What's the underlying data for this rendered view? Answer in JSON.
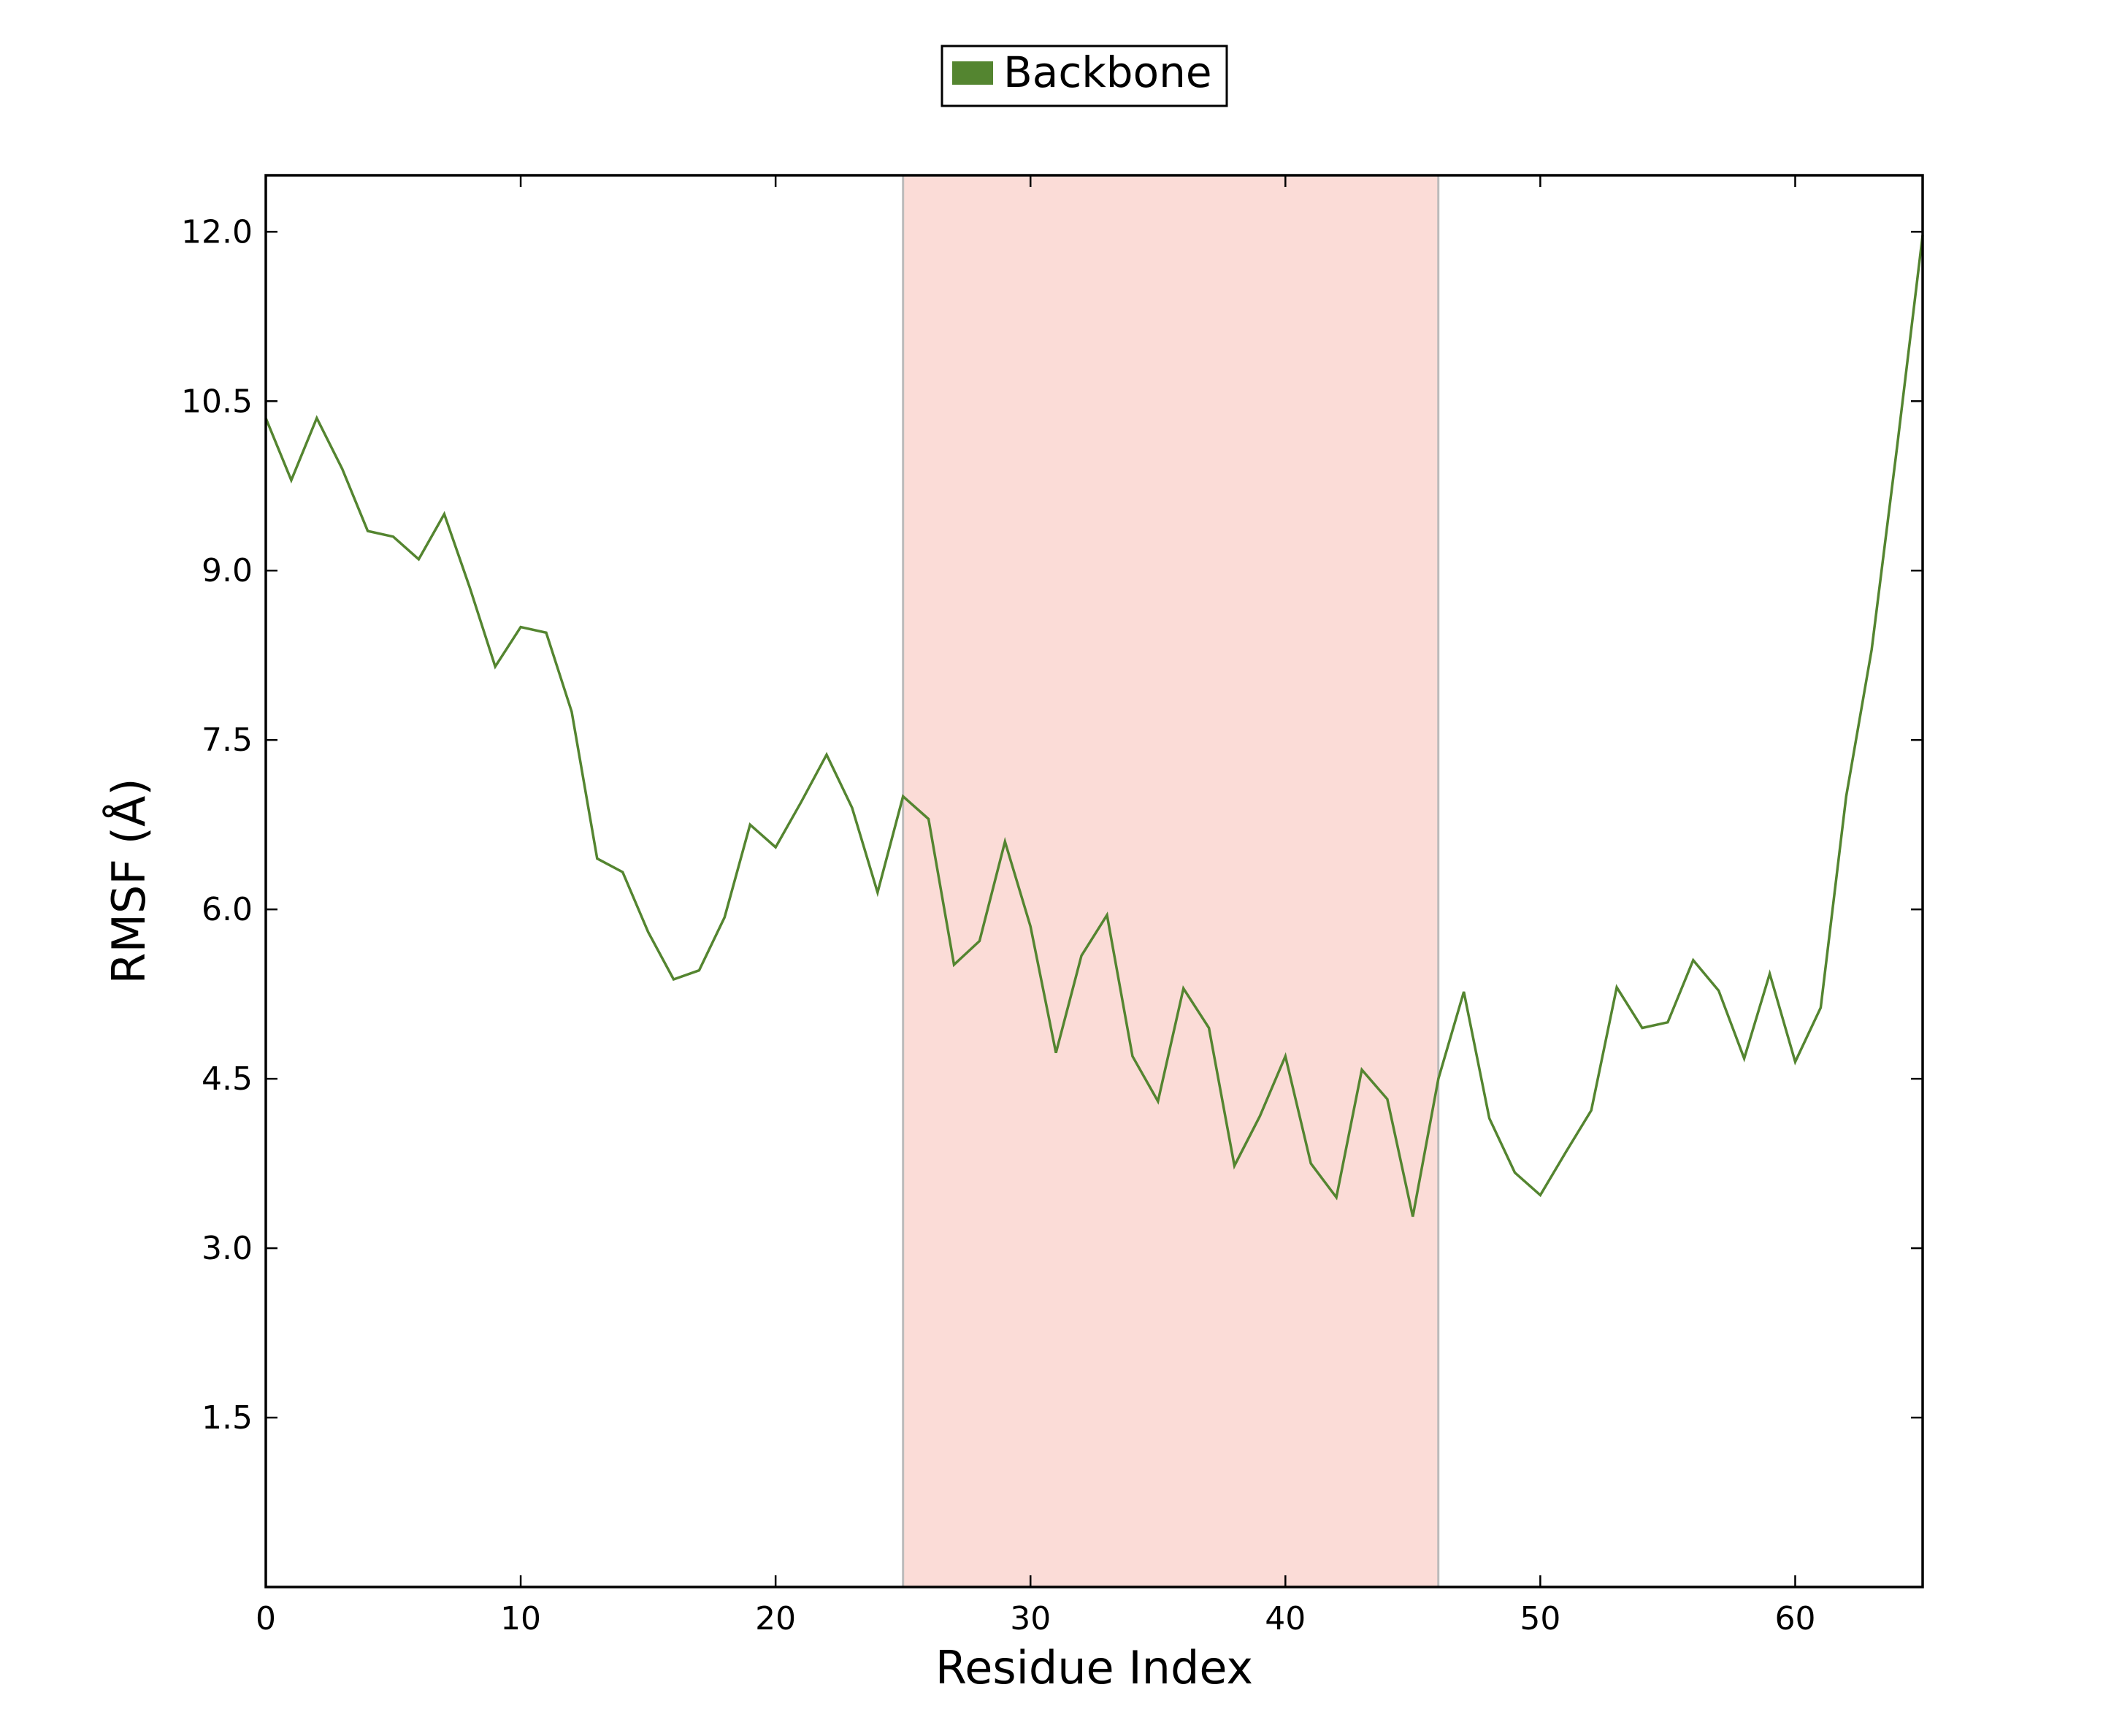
{
  "chart_data": {
    "type": "line",
    "title": "",
    "xlabel": "Residue Index",
    "ylabel": "RMSF (Å)",
    "xlim": [
      0,
      65
    ],
    "ylim": [
      0.0,
      12.5
    ],
    "xticks": [
      0,
      10,
      20,
      30,
      40,
      50,
      60
    ],
    "xtick_labels": [
      "0",
      "10",
      "20",
      "30",
      "40",
      "50",
      "60"
    ],
    "yticks": [
      1.5,
      3.0,
      4.5,
      6.0,
      7.5,
      9.0,
      10.5,
      12.0
    ],
    "ytick_labels": [
      "1.5",
      "3.0",
      "4.5",
      "6.0",
      "7.5",
      "9.0",
      "10.5",
      "12.0"
    ],
    "grid": false,
    "legend_position": "top-center, outside plot",
    "highlight_region": {
      "x_start": 25,
      "x_end": 46,
      "color": "#fbdcd7",
      "edge_color": "#bbbbbb"
    },
    "series": [
      {
        "name": "Backbone",
        "color": "#548530",
        "x": [
          0,
          1,
          2,
          3,
          4,
          5,
          6,
          7,
          8,
          9,
          10,
          11,
          12,
          13,
          14,
          15,
          16,
          17,
          18,
          19,
          20,
          21,
          22,
          23,
          24,
          25,
          26,
          27,
          28,
          29,
          30,
          31,
          32,
          33,
          34,
          35,
          36,
          37,
          38,
          39,
          40,
          41,
          42,
          43,
          44,
          45,
          46,
          47,
          48,
          49,
          50,
          51,
          52,
          53,
          54,
          55,
          56,
          57,
          58,
          59,
          60,
          61,
          62,
          63,
          64,
          65
        ],
        "values": [
          10.35,
          9.8,
          10.35,
          9.9,
          9.35,
          9.3,
          9.1,
          9.5,
          8.85,
          8.15,
          8.5,
          8.45,
          7.75,
          6.45,
          6.33,
          5.8,
          5.38,
          5.46,
          5.93,
          6.75,
          6.55,
          6.95,
          7.37,
          6.9,
          6.15,
          7.0,
          6.8,
          5.51,
          5.72,
          6.6,
          5.85,
          4.73,
          5.59,
          5.95,
          4.7,
          4.3,
          5.3,
          4.95,
          3.73,
          4.17,
          4.7,
          3.75,
          3.45,
          4.58,
          4.32,
          3.28,
          4.5,
          5.27,
          4.15,
          3.67,
          3.47,
          3.85,
          4.22,
          5.31,
          4.95,
          5.0,
          5.55,
          5.28,
          4.68,
          5.43,
          4.65,
          5.13,
          7.0,
          8.3,
          10.1,
          11.97
        ]
      }
    ]
  }
}
